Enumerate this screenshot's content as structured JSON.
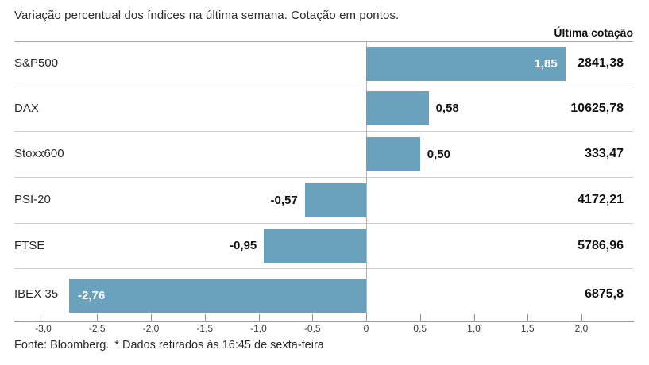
{
  "header": {
    "title": "Variação percentual dos índices na última semana. Cotação em pontos.",
    "right_column_label": "Última cotação"
  },
  "chart_data": {
    "type": "bar",
    "orientation": "horizontal",
    "title": "Variação percentual dos índices na última semana. Cotação em pontos.",
    "categories": [
      "S&P500",
      "DAX",
      "Stoxx600",
      "PSI-20",
      "FTSE",
      "IBEX 35"
    ],
    "values": [
      1.85,
      0.58,
      0.5,
      -0.57,
      -0.95,
      -2.76
    ],
    "value_labels": [
      "1,85",
      "0,58",
      "0,50",
      "-0,57",
      "-0,95",
      "-2,76"
    ],
    "quotes": [
      "2841,38",
      "10625,78",
      "333,47",
      "4172,21",
      "5786,96",
      "6875,8"
    ],
    "quotes_column_label": "Última cotação",
    "xlabel": "",
    "ylabel": "",
    "xlim": [
      -3.3,
      2.5
    ],
    "x_ticks": [
      -3,
      -2.5,
      -2,
      -1.5,
      -1,
      -0.5,
      0,
      0.5,
      1,
      1.5,
      2
    ],
    "x_tick_labels": [
      "-3,0",
      "-2,5",
      "-2,0",
      "-1,5",
      "-1,0",
      "-0,5",
      "0",
      "0,5",
      "1,0",
      "1,5",
      "2,0"
    ],
    "grid": "row-separators",
    "legend": "none",
    "colors": {
      "bar": "#6aa1bc",
      "inside_value_text": "#ffffff",
      "outside_value_text": "#111111",
      "separator": "#cfcfcf",
      "axis": "#9b9b9b"
    }
  },
  "footer": {
    "source": "Fonte: Bloomberg.",
    "note": "* Dados retirados às 16:45 de sexta-feira"
  }
}
